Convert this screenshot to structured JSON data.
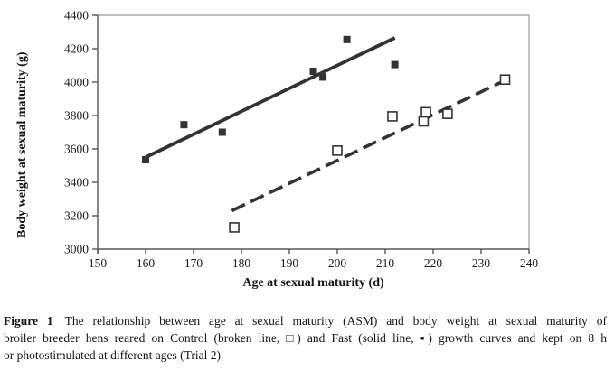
{
  "figure": {
    "caption": {
      "label": "Figure 1",
      "lines": [
        "The relationship between age at sexual maturity (ASM) and body weight at sexual maturity of",
        "broiler breeder hens reared on Control (broken line, □) and Fast (solid line, ▪) growth curves and kept on 8 h",
        "or photostimulated at different ages (Trial 2)"
      ]
    }
  },
  "chart_data": {
    "type": "scatter",
    "title": "",
    "xlabel": "Age at sexual maturity (d)",
    "ylabel": "Body weight at sexual maturity (g)",
    "xlim": [
      150,
      240
    ],
    "ylim": [
      3000,
      4400
    ],
    "x_ticks": [
      150,
      160,
      170,
      180,
      190,
      200,
      210,
      220,
      230,
      240
    ],
    "y_ticks": [
      3000,
      3200,
      3400,
      3600,
      3800,
      4000,
      4200,
      4400
    ],
    "grid": false,
    "legend_position": "none (series described in caption)",
    "series": [
      {
        "name": "Fast",
        "marker": "filled-square",
        "line_style": "solid",
        "points": [
          [
            160,
            3535
          ],
          [
            168,
            3745
          ],
          [
            176,
            3700
          ],
          [
            195,
            4065
          ],
          [
            197,
            4030
          ],
          [
            202,
            4255
          ],
          [
            212,
            4105
          ]
        ],
        "trendline": {
          "x1": 160,
          "y1": 3550,
          "x2": 212,
          "y2": 4265
        }
      },
      {
        "name": "Control",
        "marker": "open-square",
        "line_style": "dashed",
        "points": [
          [
            178.5,
            3130
          ],
          [
            200,
            3590
          ],
          [
            211.5,
            3795
          ],
          [
            218,
            3765
          ],
          [
            218.5,
            3820
          ],
          [
            223,
            3810
          ],
          [
            235,
            4015
          ]
        ],
        "trendline": {
          "x1": 178,
          "y1": 3230,
          "x2": 235,
          "y2": 4010
        }
      }
    ],
    "colors": {
      "data": "#333333",
      "axis": "#565656",
      "frame": "#9a9a9a",
      "text": "#1b1b1b",
      "marker_fill_open": "#ffffff"
    }
  }
}
